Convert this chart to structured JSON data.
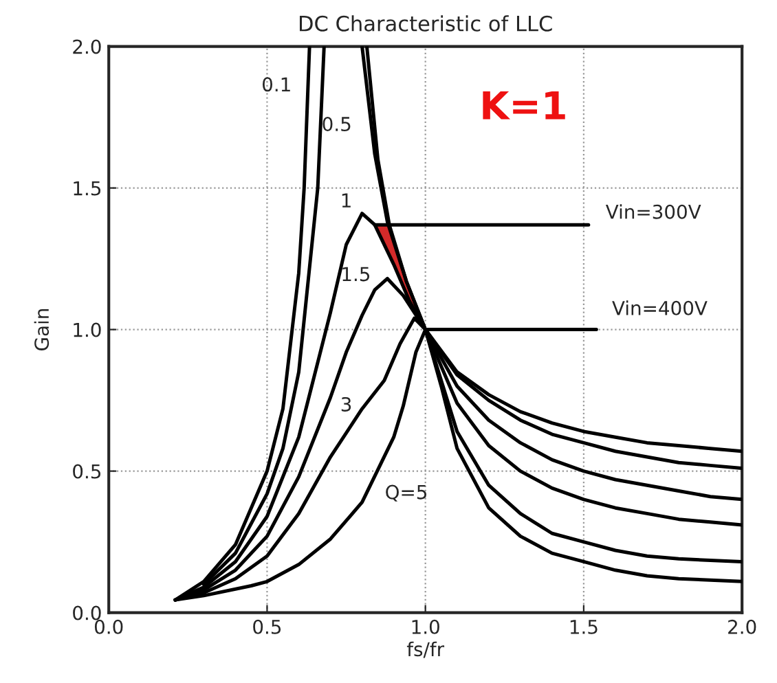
{
  "chart_data": {
    "type": "line",
    "title": "DC Characteristic of LLC",
    "xlabel": "fs/fr",
    "ylabel": "Gain",
    "xlim": [
      0,
      2
    ],
    "ylim": [
      0,
      2
    ],
    "xticks": [
      {
        "value": 0,
        "label": "0.0"
      },
      {
        "value": 0.5,
        "label": "0.5"
      },
      {
        "value": 1,
        "label": "1.0"
      },
      {
        "value": 1.5,
        "label": "1.5"
      },
      {
        "value": 2,
        "label": "2.0"
      }
    ],
    "yticks": [
      {
        "value": 0,
        "label": "0.0"
      },
      {
        "value": 0.5,
        "label": "0.5"
      },
      {
        "value": 1,
        "label": "1.0"
      },
      {
        "value": 1.5,
        "label": "1.5"
      },
      {
        "value": 2,
        "label": "2.0"
      }
    ],
    "grid": true,
    "series": [
      {
        "color": "#000000",
        "x": [
          0.21,
          0.3,
          0.4,
          0.5,
          0.55,
          0.6,
          0.617,
          0.634,
          0.7,
          0.815,
          0.85,
          0.886,
          0.94,
          1.0,
          1.1,
          1.2,
          1.3,
          1.4,
          1.5,
          1.6,
          1.7,
          1.8,
          1.9,
          2.0
        ],
        "values": [
          0.045,
          0.11,
          0.24,
          0.5,
          0.72,
          1.2,
          1.5,
          2.0,
          null,
          2.0,
          1.6,
          1.37,
          1.17,
          1.0,
          0.85,
          0.77,
          0.71,
          0.67,
          0.64,
          0.62,
          0.6,
          0.59,
          0.58,
          0.57
        ]
      },
      {
        "color": "#000000",
        "x": [
          0.3,
          0.4,
          0.5,
          0.55,
          0.6,
          0.66,
          0.68,
          0.74,
          0.8,
          0.84,
          0.88,
          0.94,
          1.0,
          1.1,
          1.2,
          1.3,
          1.4,
          1.5,
          1.6,
          1.7,
          1.8,
          1.9,
          2.0
        ],
        "values": [
          0.1,
          0.21,
          0.42,
          0.58,
          0.85,
          1.5,
          2.0,
          null,
          2.0,
          1.62,
          1.38,
          1.17,
          1.0,
          0.84,
          0.75,
          0.68,
          0.63,
          0.6,
          0.57,
          0.55,
          0.53,
          0.52,
          0.51
        ]
      },
      {
        "color": "#000000",
        "x": [
          0.21,
          0.3,
          0.4,
          0.5,
          0.6,
          0.7,
          0.75,
          0.8,
          0.84,
          0.9,
          0.95,
          1.0,
          1.1,
          1.2,
          1.3,
          1.4,
          1.5,
          1.6,
          1.7,
          1.8,
          1.9,
          2.0
        ],
        "values": [
          0.045,
          0.09,
          0.18,
          0.34,
          0.62,
          1.06,
          1.3,
          1.41,
          1.37,
          1.23,
          1.1,
          1.0,
          0.8,
          0.68,
          0.6,
          0.54,
          0.5,
          0.47,
          0.45,
          0.43,
          0.41,
          0.4
        ]
      },
      {
        "color": "#000000",
        "x": [
          0.21,
          0.3,
          0.4,
          0.5,
          0.6,
          0.7,
          0.75,
          0.8,
          0.84,
          0.88,
          0.93,
          1.0,
          1.1,
          1.2,
          1.3,
          1.4,
          1.5,
          1.6,
          1.7,
          1.8,
          1.9,
          2.0
        ],
        "values": [
          0.045,
          0.08,
          0.15,
          0.27,
          0.48,
          0.76,
          0.92,
          1.05,
          1.14,
          1.18,
          1.12,
          1.0,
          0.74,
          0.59,
          0.5,
          0.44,
          0.4,
          0.37,
          0.35,
          0.33,
          0.32,
          0.31
        ]
      },
      {
        "color": "#000000",
        "x": [
          0.21,
          0.3,
          0.4,
          0.5,
          0.6,
          0.7,
          0.8,
          0.87,
          0.92,
          0.965,
          1.0,
          1.1,
          1.2,
          1.3,
          1.4,
          1.5,
          1.6,
          1.7,
          1.8,
          1.9,
          2.0
        ],
        "values": [
          0.045,
          0.07,
          0.12,
          0.2,
          0.35,
          0.55,
          0.72,
          0.82,
          0.95,
          1.04,
          1.0,
          0.64,
          0.45,
          0.35,
          0.28,
          0.25,
          0.22,
          0.2,
          0.19,
          0.185,
          0.18
        ]
      },
      {
        "color": "#000000",
        "x": [
          0.21,
          0.3,
          0.45,
          0.5,
          0.6,
          0.7,
          0.8,
          0.9,
          0.93,
          0.97,
          1.0,
          1.05,
          1.1,
          1.2,
          1.3,
          1.4,
          1.5,
          1.6,
          1.7,
          1.8,
          1.9,
          2.0
        ],
        "values": [
          0.045,
          0.06,
          0.095,
          0.11,
          0.17,
          0.26,
          0.39,
          0.62,
          0.73,
          0.92,
          1.0,
          0.8,
          0.58,
          0.37,
          0.27,
          0.21,
          0.18,
          0.15,
          0.13,
          0.12,
          0.115,
          0.11
        ]
      },
      {
        "color": "#000000",
        "x": [
          0.84,
          1.515
        ],
        "values": [
          1.37,
          1.37
        ]
      },
      {
        "color": "#000000",
        "x": [
          1.0,
          1.54
        ],
        "values": [
          1.0,
          1.0
        ]
      }
    ],
    "annotations": [
      "0.1",
      "0.5",
      "1",
      "1.5",
      "3",
      "Q=5",
      "Vin=300V",
      "Vin=400V",
      "K=1"
    ]
  }
}
